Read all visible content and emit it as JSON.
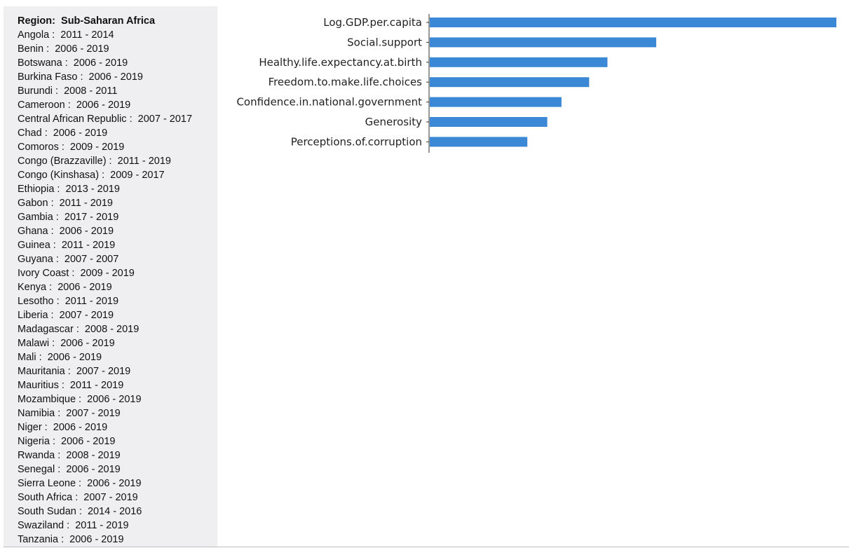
{
  "sidebar": {
    "region_label": "Region:  Sub-Saharan Africa",
    "countries": [
      "Angola :  2011 - 2014",
      "Benin :  2006 - 2019",
      "Botswana :  2006 - 2019",
      "Burkina Faso :  2006 - 2019",
      "Burundi :  2008 - 2011",
      "Cameroon :  2006 - 2019",
      "Central African Republic :  2007 - 2017",
      "Chad :  2006 - 2019",
      "Comoros :  2009 - 2019",
      "Congo (Brazzaville) :  2011 - 2019",
      "Congo (Kinshasa) :  2009 - 2017",
      "Ethiopia :  2013 - 2019",
      "Gabon :  2011 - 2019",
      "Gambia :  2017 - 2019",
      "Ghana :  2006 - 2019",
      "Guinea :  2011 - 2019",
      "Guyana :  2007 - 2007",
      "Ivory Coast :  2009 - 2019",
      "Kenya :  2006 - 2019",
      "Lesotho :  2011 - 2019",
      "Liberia :  2007 - 2019",
      "Madagascar :  2008 - 2019",
      "Malawi :  2006 - 2019",
      "Mali :  2006 - 2019",
      "Mauritania :  2007 - 2019",
      "Mauritius :  2011 - 2019",
      "Mozambique :  2006 - 2019",
      "Namibia :  2007 - 2019",
      "Niger :  2006 - 2019",
      "Nigeria :  2006 - 2019",
      "Rwanda :  2008 - 2019",
      "Senegal :  2006 - 2019",
      "Sierra Leone :  2006 - 2019",
      "South Africa :  2007 - 2019",
      "South Sudan :  2014 - 2016",
      "Swaziland :  2011 - 2019",
      "Tanzania :  2006 - 2019"
    ]
  },
  "chart_data": {
    "type": "bar",
    "orientation": "horizontal",
    "title": "",
    "xlabel": "",
    "ylabel": "",
    "categories": [
      "Log.GDP.per.capita",
      "Social.support",
      "Healthy.life.expectancy.at.birth",
      "Freedom.to.make.life.choices",
      "Confidence.in.national.government",
      "Generosity",
      "Perceptions.of.corruption"
    ],
    "values": [
      1.0,
      0.557,
      0.437,
      0.392,
      0.324,
      0.289,
      0.24
    ],
    "xlim": [
      0,
      1.0
    ],
    "bar_color": "#3a88d6",
    "grid": false,
    "legend": "none"
  }
}
